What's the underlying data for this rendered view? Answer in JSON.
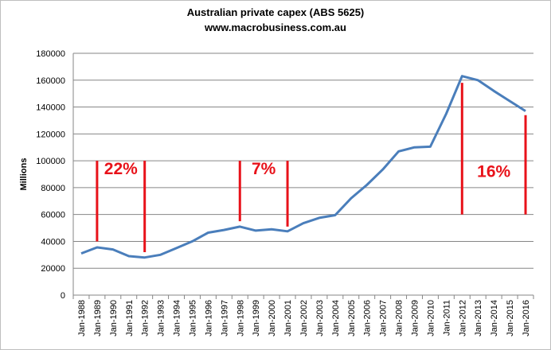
{
  "chart_data": {
    "type": "line",
    "title": "Australian private capex (ABS 5625)",
    "subtitle": "www.macrobusiness.com.au",
    "ylabel": "Millions",
    "xlabel": "",
    "ylim": [
      0,
      180000
    ],
    "yticks": [
      0,
      20000,
      40000,
      60000,
      80000,
      100000,
      120000,
      140000,
      160000,
      180000
    ],
    "grid": true,
    "categories": [
      "Jan-1988",
      "Jan-1989",
      "Jan-1990",
      "Jan-1991",
      "Jan-1992",
      "Jan-1993",
      "Jan-1994",
      "Jan-1995",
      "Jan-1996",
      "Jan-1997",
      "Jan-1998",
      "Jan-1999",
      "Jan-2000",
      "Jan-2001",
      "Jan-2002",
      "Jan-2003",
      "Jan-2004",
      "Jan-2005",
      "Jan-2006",
      "Jan-2007",
      "Jan-2008",
      "Jan-2009",
      "Jan-2010",
      "Jan-2011",
      "Jan-2012",
      "Jan-2013",
      "Jan-2014",
      "Jan-2015",
      "Jan-2016"
    ],
    "series": [
      {
        "color": "#4a7ebb",
        "values": [
          31000,
          35500,
          34000,
          29000,
          28000,
          30000,
          35000,
          40000,
          46500,
          48500,
          51000,
          48000,
          49000,
          47500,
          53500,
          57500,
          59500,
          72000,
          82000,
          93500,
          107000,
          110000,
          110500,
          135000,
          163000,
          160000,
          152000,
          144500,
          137000
        ]
      }
    ],
    "annotations": [
      {
        "label": "22%",
        "x_from": "Jan-1989",
        "x_to": "Jan-1992",
        "line_from": 40000,
        "line_to": 100000,
        "line2_from": 32000,
        "line2_to": 100000,
        "text_y": 90000
      },
      {
        "label": "7%",
        "x_from": "Jan-1998",
        "x_to": "Jan-2001",
        "line_from": 55000,
        "line_to": 100000,
        "line2_from": 51000,
        "line2_to": 100000,
        "text_y": 90000
      },
      {
        "label": "16%",
        "x_from": "Jan-2012",
        "x_to": "Jan-2016",
        "line_from": 60000,
        "line_to": 158000,
        "line2_from": 60000,
        "line2_to": 134000,
        "text_y": 88000
      }
    ],
    "annotation_color": "#e8121a",
    "grid_color": "#868686"
  }
}
